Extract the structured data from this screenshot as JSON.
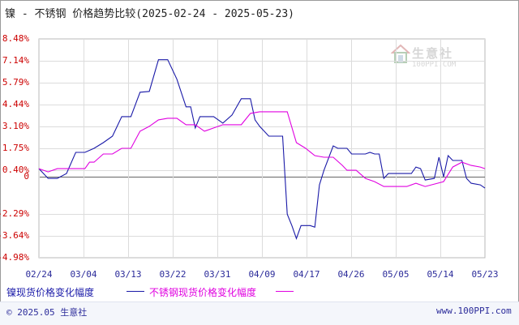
{
  "header": {
    "title": "镍 - 不锈钢 价格趋势比较(2025-02-24 - 2025-05-23)"
  },
  "watermark": {
    "name": "生意社",
    "url": "100PPI.COM"
  },
  "footer": {
    "left": "© 2025.05 生意社",
    "right": "www.100PPI.com"
  },
  "colors": {
    "nickel": "#1a1aa8",
    "stainless": "#e000e0",
    "axis_text": "#cc0000",
    "date_text": "#2b2b9a"
  },
  "chart_data": {
    "type": "line",
    "yticks": [
      "8.48%",
      "7.14%",
      "5.79%",
      "4.44%",
      "3.10%",
      "1.75%",
      "0.40%",
      "0",
      "-2.29%",
      "-3.64%",
      "-4.98%"
    ],
    "ytick_values": [
      8.48,
      7.14,
      5.79,
      4.44,
      3.1,
      1.75,
      0.4,
      0,
      -2.29,
      -3.64,
      -4.98
    ],
    "ylim": [
      -4.98,
      8.48
    ],
    "xticks": [
      "02/24",
      "03/04",
      "03/13",
      "03/22",
      "03/31",
      "04/09",
      "04/17",
      "04/26",
      "05/05",
      "05/14",
      "05/23"
    ],
    "x_count": 89,
    "grid": true,
    "legend_position": "bottom",
    "series": [
      {
        "name": "镍现货价格变化幅度",
        "color": "#1a1aa8",
        "values": [
          [
            0,
            0.5
          ],
          [
            2,
            -0.1
          ],
          [
            4,
            -0.1
          ],
          [
            6,
            0.2
          ],
          [
            8,
            1.5
          ],
          [
            10,
            1.5
          ],
          [
            12,
            1.75
          ],
          [
            14,
            2.1
          ],
          [
            16,
            2.5
          ],
          [
            18,
            3.7
          ],
          [
            20,
            3.7
          ],
          [
            22,
            5.2
          ],
          [
            24,
            5.25
          ],
          [
            26,
            7.2
          ],
          [
            28,
            7.2
          ],
          [
            30,
            6.0
          ],
          [
            32,
            4.3
          ],
          [
            33,
            4.3
          ],
          [
            34,
            3.0
          ],
          [
            35,
            3.7
          ],
          [
            38,
            3.7
          ],
          [
            40,
            3.3
          ],
          [
            42,
            3.8
          ],
          [
            44,
            4.8
          ],
          [
            46,
            4.8
          ],
          [
            47,
            3.5
          ],
          [
            48,
            3.1
          ],
          [
            50,
            2.5
          ],
          [
            52,
            2.5
          ],
          [
            53,
            2.5
          ],
          [
            54,
            -2.3
          ],
          [
            55,
            -3.0
          ],
          [
            56,
            -3.8
          ],
          [
            57,
            -3.0
          ],
          [
            59,
            -3.0
          ],
          [
            60,
            -3.1
          ],
          [
            61,
            -0.5
          ],
          [
            62,
            0.4
          ],
          [
            64,
            1.9
          ],
          [
            65,
            1.75
          ],
          [
            67,
            1.75
          ],
          [
            68,
            1.4
          ],
          [
            71,
            1.4
          ],
          [
            72,
            1.5
          ],
          [
            73,
            1.4
          ],
          [
            74,
            1.4
          ],
          [
            75,
            -0.1
          ],
          [
            76,
            0.2
          ],
          [
            78,
            0.2
          ],
          [
            81,
            0.2
          ],
          [
            82,
            0.6
          ],
          [
            83,
            0.5
          ],
          [
            84,
            -0.2
          ],
          [
            86,
            -0.1
          ],
          [
            87,
            1.2
          ],
          [
            88,
            0.0
          ],
          [
            89,
            1.3
          ],
          [
            90,
            1.0
          ],
          [
            92,
            1.0
          ],
          [
            93,
            -0.1
          ],
          [
            94,
            -0.4
          ],
          [
            96,
            -0.5
          ],
          [
            97,
            -0.7
          ]
        ]
      },
      {
        "name": "不锈钢现货价格变化幅度",
        "color": "#e000e0",
        "values": [
          [
            0,
            0.5
          ],
          [
            2,
            0.3
          ],
          [
            4,
            0.5
          ],
          [
            10,
            0.5
          ],
          [
            11,
            0.9
          ],
          [
            12,
            0.9
          ],
          [
            14,
            1.4
          ],
          [
            16,
            1.4
          ],
          [
            18,
            1.75
          ],
          [
            20,
            1.75
          ],
          [
            22,
            2.8
          ],
          [
            24,
            3.1
          ],
          [
            26,
            3.5
          ],
          [
            28,
            3.6
          ],
          [
            30,
            3.6
          ],
          [
            32,
            3.2
          ],
          [
            34,
            3.2
          ],
          [
            36,
            2.8
          ],
          [
            38,
            3.0
          ],
          [
            40,
            3.2
          ],
          [
            42,
            3.2
          ],
          [
            44,
            3.2
          ],
          [
            46,
            3.9
          ],
          [
            48,
            4.0
          ],
          [
            54,
            4.0
          ],
          [
            56,
            2.1
          ],
          [
            58,
            1.75
          ],
          [
            60,
            1.3
          ],
          [
            62,
            1.2
          ],
          [
            64,
            1.2
          ],
          [
            66,
            0.7
          ],
          [
            67,
            0.4
          ],
          [
            68,
            0.4
          ],
          [
            69,
            0.4
          ],
          [
            71,
            -0.1
          ],
          [
            73,
            -0.3
          ],
          [
            75,
            -0.6
          ],
          [
            80,
            -0.6
          ],
          [
            82,
            -0.4
          ],
          [
            84,
            -0.6
          ],
          [
            88,
            -0.3
          ],
          [
            90,
            0.6
          ],
          [
            92,
            0.9
          ],
          [
            94,
            0.7
          ],
          [
            96,
            0.6
          ],
          [
            97,
            0.5
          ]
        ]
      }
    ]
  }
}
